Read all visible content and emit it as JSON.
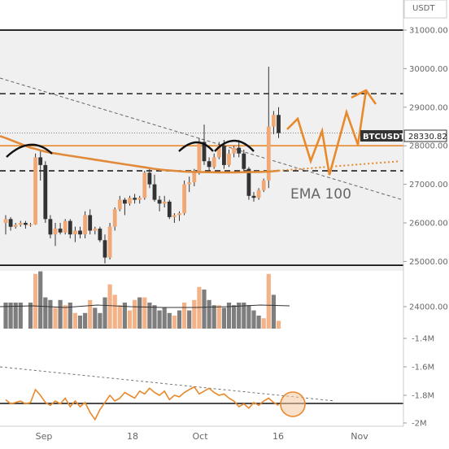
{
  "chart_data": {
    "type": "candlestick",
    "quote_currency": "USDT",
    "price_axis": {
      "ticks": [
        "31000.00",
        "30000.00",
        "29000.00",
        "28000.00",
        "27000.00",
        "26000.00",
        "25000.00",
        "24000.00"
      ],
      "range": [
        24000,
        31400
      ]
    },
    "rsi_axis": {
      "ticks": [
        "-1.4M",
        "-1.6M",
        "-1.8M",
        "-2M"
      ]
    },
    "x_axis": {
      "ticks": [
        "Sep",
        "18",
        "Oct",
        "16",
        "Nov"
      ]
    },
    "ticker": {
      "symbol": "BTCUSDT",
      "value": "28330.82"
    },
    "ema_label": "EMA 100",
    "horizontal_levels": {
      "black_solid": [
        31000,
        24900
      ],
      "black_dashed": [
        29350,
        27350
      ],
      "orange_solid": 28000
    },
    "colors": {
      "up": "#f0a874",
      "down": "#333333",
      "accent": "#e8892c",
      "volume_up": "#f3b287",
      "volume_down": "#7e7e7e",
      "ticker_bg": "#333333",
      "panel_bg": "#f0f0f0"
    },
    "candles": [
      [
        26000,
        26200,
        25700,
        26100
      ],
      [
        26100,
        26150,
        25800,
        25900
      ],
      [
        25900,
        26000,
        25850,
        25950
      ],
      [
        25950,
        26050,
        25900,
        26000
      ],
      [
        26000,
        26050,
        25850,
        25950
      ],
      [
        25950,
        26000,
        25900,
        25960
      ],
      [
        25960,
        27800,
        25950,
        27700
      ],
      [
        27700,
        27900,
        27100,
        27500
      ],
      [
        27500,
        27600,
        26000,
        26100
      ],
      [
        26100,
        26200,
        25600,
        25700
      ],
      [
        25700,
        26000,
        25400,
        25850
      ],
      [
        25850,
        26000,
        25700,
        25750
      ],
      [
        25750,
        26100,
        25700,
        26050
      ],
      [
        26050,
        26100,
        25600,
        25700
      ],
      [
        25700,
        25900,
        25500,
        25800
      ],
      [
        25800,
        25900,
        25600,
        25700
      ],
      [
        25700,
        26300,
        25600,
        26200
      ],
      [
        26200,
        26350,
        25700,
        25800
      ],
      [
        25800,
        25900,
        25700,
        25850
      ],
      [
        25850,
        25900,
        25500,
        25550
      ],
      [
        25550,
        25700,
        24950,
        25100
      ],
      [
        25100,
        26000,
        25050,
        25900
      ],
      [
        25900,
        26400,
        25800,
        26350
      ],
      [
        26350,
        26700,
        26300,
        26600
      ],
      [
        26600,
        26650,
        26200,
        26500
      ],
      [
        26500,
        26700,
        26450,
        26650
      ],
      [
        26650,
        26750,
        26500,
        26600
      ],
      [
        26600,
        26700,
        26500,
        26650
      ],
      [
        26650,
        27350,
        26600,
        27300
      ],
      [
        27300,
        27400,
        26900,
        27000
      ],
      [
        27000,
        27250,
        26550,
        26600
      ],
      [
        26600,
        26700,
        26300,
        26500
      ],
      [
        26500,
        26700,
        26400,
        26550
      ],
      [
        26550,
        26600,
        26100,
        26150
      ],
      [
        26150,
        26250,
        26000,
        26200
      ],
      [
        26200,
        26300,
        26050,
        26250
      ],
      [
        26250,
        27100,
        26200,
        27000
      ],
      [
        27000,
        27200,
        26800,
        27050
      ],
      [
        27050,
        27400,
        26950,
        27300
      ],
      [
        27300,
        28200,
        27250,
        28100
      ],
      [
        28100,
        28550,
        27500,
        27600
      ],
      [
        27600,
        27700,
        27350,
        27450
      ],
      [
        27450,
        27800,
        27400,
        27700
      ],
      [
        27700,
        28100,
        27650,
        28000
      ],
      [
        28000,
        28150,
        27400,
        27500
      ],
      [
        27500,
        27900,
        27450,
        27800
      ],
      [
        27800,
        28000,
        27700,
        27950
      ],
      [
        27950,
        28150,
        27700,
        27800
      ],
      [
        27800,
        27900,
        27300,
        27400
      ],
      [
        27400,
        27450,
        26600,
        26700
      ],
      [
        26700,
        26800,
        26550,
        26650
      ],
      [
        26650,
        26900,
        26600,
        26850
      ],
      [
        26850,
        27150,
        26800,
        27100
      ],
      [
        27100,
        30050,
        26900,
        28500
      ],
      [
        28500,
        28900,
        28300,
        28800
      ],
      [
        28800,
        29000,
        28200,
        28330
      ]
    ],
    "volumes": [
      [
        0,
        1
      ],
      [
        0,
        1
      ],
      [
        0,
        1
      ],
      [
        0,
        1
      ],
      [
        0,
        0
      ],
      [
        0,
        1
      ],
      [
        1,
        2.1
      ],
      [
        0,
        2.2
      ],
      [
        0,
        1.2
      ],
      [
        0,
        1.1
      ],
      [
        1,
        0.8
      ],
      [
        0,
        1.1
      ],
      [
        1,
        0.9
      ],
      [
        0,
        1.0
      ],
      [
        1,
        0.6
      ],
      [
        0,
        0.5
      ],
      [
        0,
        0.6
      ],
      [
        1,
        1.1
      ],
      [
        0,
        0.8
      ],
      [
        0,
        0.6
      ],
      [
        0,
        1.2
      ],
      [
        1,
        1.7
      ],
      [
        1,
        1.3
      ],
      [
        1,
        0.9
      ],
      [
        0,
        1.0
      ],
      [
        1,
        0.7
      ],
      [
        1,
        1.1
      ],
      [
        0,
        1.2
      ],
      [
        1,
        1.2
      ],
      [
        0,
        1.0
      ],
      [
        0,
        0.9
      ],
      [
        0,
        0.7
      ],
      [
        0,
        0.8
      ],
      [
        0,
        0.6
      ],
      [
        1,
        0.5
      ],
      [
        0,
        0.7
      ],
      [
        1,
        1.0
      ],
      [
        0,
        0.7
      ],
      [
        1,
        1.1
      ],
      [
        1,
        1.6
      ],
      [
        0,
        1.5
      ],
      [
        0,
        1.1
      ],
      [
        0,
        0.9
      ],
      [
        1,
        0.9
      ],
      [
        0,
        0.8
      ],
      [
        0,
        1.0
      ],
      [
        0,
        0.9
      ],
      [
        0,
        1.0
      ],
      [
        0,
        1.0
      ],
      [
        0,
        0.9
      ],
      [
        0,
        0.7
      ],
      [
        0,
        0.5
      ],
      [
        1,
        0.4
      ],
      [
        1,
        2.1
      ],
      [
        0,
        1.3
      ],
      [
        1,
        0.3
      ]
    ],
    "oscillator": [
      -1.83,
      -1.86,
      -1.85,
      -1.84,
      -1.86,
      -1.85,
      -1.76,
      -1.8,
      -1.85,
      -1.87,
      -1.84,
      -1.86,
      -1.82,
      -1.88,
      -1.84,
      -1.88,
      -1.85,
      -1.92,
      -1.97,
      -1.9,
      -1.85,
      -1.8,
      -1.84,
      -1.82,
      -1.78,
      -1.8,
      -1.82,
      -1.77,
      -1.79,
      -1.75,
      -1.78,
      -1.8,
      -1.77,
      -1.83,
      -1.8,
      -1.81,
      -1.78,
      -1.76,
      -1.74,
      -1.79,
      -1.77,
      -1.75,
      -1.78,
      -1.8,
      -1.79,
      -1.82,
      -1.84,
      -1.88,
      -1.86,
      -1.89,
      -1.85,
      -1.87,
      -1.84,
      -1.82,
      -1.85,
      -1.87
    ],
    "ema100": [
      28200,
      28150,
      28100,
      28050,
      28000,
      27950,
      27920,
      27880,
      27850,
      27820,
      27800,
      27780,
      27760,
      27740,
      27720,
      27700,
      27680,
      27660,
      27640,
      27620,
      27600,
      27580,
      27560,
      27540,
      27520,
      27500,
      27480,
      27460,
      27440,
      27420,
      27400,
      27385,
      27370,
      27360,
      27350,
      27340,
      27330,
      27325,
      27320,
      27318,
      27316,
      27314,
      27312,
      27310,
      27310,
      27310,
      27310,
      27312,
      27314,
      27316,
      27318,
      27320,
      27325,
      27330,
      27340,
      27355
    ]
  }
}
